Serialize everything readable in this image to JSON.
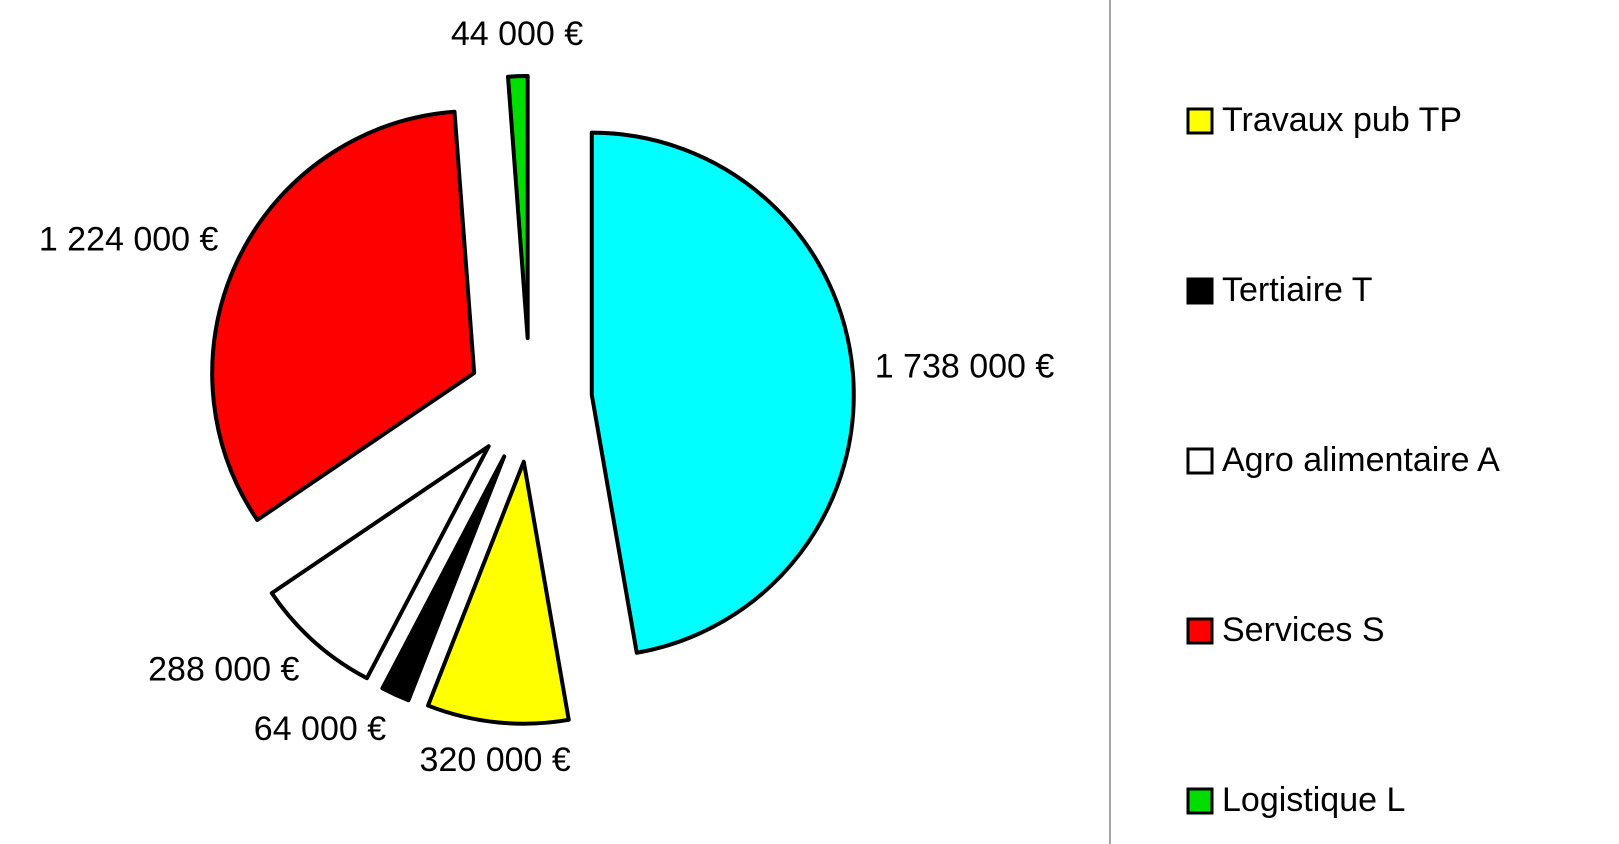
{
  "chart_data": {
    "type": "pie",
    "categories": [
      null,
      "Travaux pub TP",
      "Tertiaire T",
      "Agro alimentaire A",
      "Services S",
      "Logistique L"
    ],
    "values": [
      1738000,
      320000,
      64000,
      288000,
      1224000,
      44000
    ],
    "value_labels": [
      "1 738 000 €",
      "320 000 €",
      "64 000 €",
      "288 000 €",
      "1 224 000 €",
      "44 000 €"
    ],
    "colors": [
      "#00ffff",
      "#ffff00",
      "#000000",
      "#ffffff",
      "#ff0000",
      "#00dd00"
    ],
    "legend": "right"
  }
}
